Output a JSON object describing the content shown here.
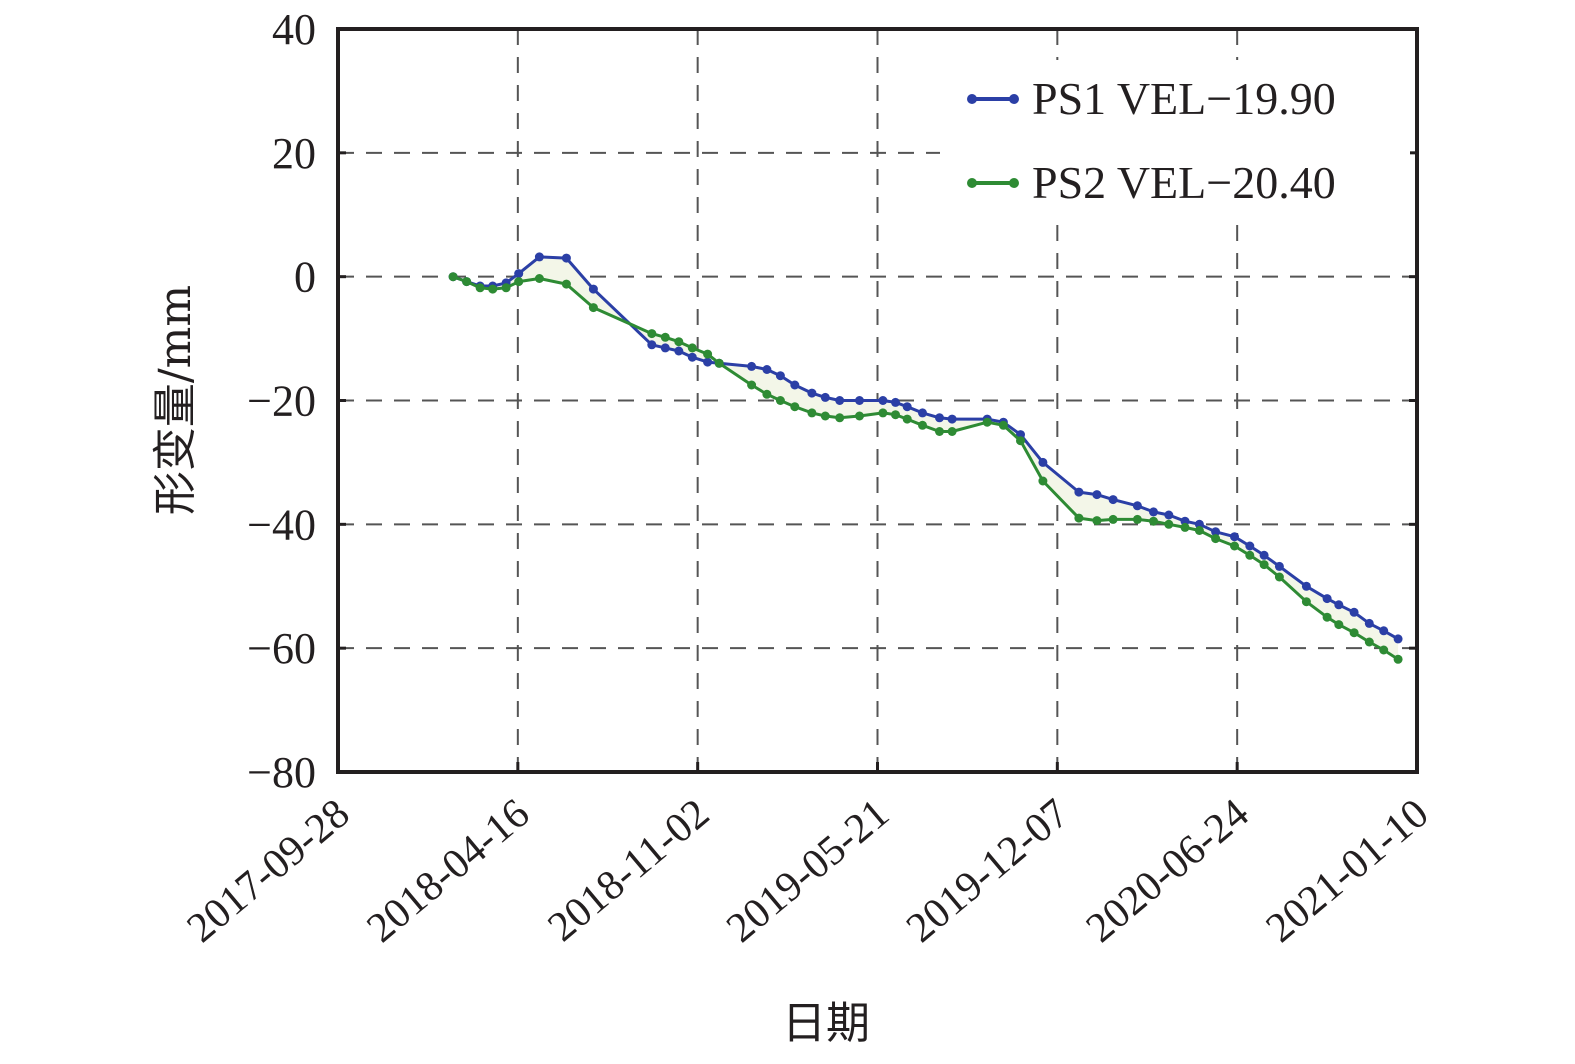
{
  "chart_data": {
    "type": "line",
    "title": "",
    "xlabel": "日期",
    "ylabel": "形变量/mm",
    "x_unit": "days since 2017-09-28",
    "xlim": [
      0,
      1200
    ],
    "ylim": [
      -80,
      40
    ],
    "grid": true,
    "legend_position": "top-right",
    "x_ticks": [
      {
        "value": 0,
        "label": "2017-09-28"
      },
      {
        "value": 200,
        "label": "2018-04-16"
      },
      {
        "value": 400,
        "label": "2018-11-02"
      },
      {
        "value": 600,
        "label": "2019-05-21"
      },
      {
        "value": 800,
        "label": "2019-12-07"
      },
      {
        "value": 1000,
        "label": "2020-06-24"
      },
      {
        "value": 1200,
        "label": "2021-01-10"
      }
    ],
    "y_ticks": [
      {
        "value": 40,
        "label": "40"
      },
      {
        "value": 20,
        "label": "20"
      },
      {
        "value": 0,
        "label": "0"
      },
      {
        "value": -20,
        "label": "−20"
      },
      {
        "value": -40,
        "label": "−40"
      },
      {
        "value": -60,
        "label": "−60"
      },
      {
        "value": -80,
        "label": "−80"
      }
    ],
    "x": [
      128,
      143,
      158,
      172,
      187,
      201,
      224,
      254,
      284,
      349,
      364,
      379,
      394,
      411,
      424,
      460,
      477,
      492,
      508,
      527,
      542,
      558,
      580,
      606,
      620,
      633,
      650,
      669,
      683,
      722,
      740,
      759,
      784,
      824,
      844,
      862,
      889,
      907,
      924,
      942,
      958,
      976,
      997,
      1014,
      1030,
      1047,
      1077,
      1100,
      1113,
      1130,
      1147,
      1163,
      1179
    ],
    "series": [
      {
        "name": "PS1 VEL−19.90",
        "color": "#2b3fa6",
        "values": [
          0,
          -0.8,
          -1.5,
          -1.5,
          -1,
          0.5,
          3.2,
          3,
          -2,
          -11,
          -11.5,
          -12,
          -13,
          -13.8,
          -14,
          -14.5,
          -15,
          -16,
          -17.5,
          -18.8,
          -19.5,
          -20,
          -20,
          -20,
          -20.3,
          -21,
          -22,
          -22.8,
          -23,
          -23,
          -23.5,
          -25.5,
          -30,
          -34.8,
          -35.2,
          -36,
          -37,
          -38,
          -38.5,
          -39.5,
          -40,
          -41.2,
          -42,
          -43.5,
          -45,
          -46.8,
          -50,
          -52,
          -53,
          -54.2,
          -56,
          -57.2,
          -58.5
        ]
      },
      {
        "name": "PS2 VEL−20.40",
        "color": "#2e8b34",
        "values": [
          0,
          -0.8,
          -1.8,
          -2,
          -1.8,
          -0.8,
          -0.3,
          -1.2,
          -5,
          -9.2,
          -9.8,
          -10.5,
          -11.5,
          -12.5,
          -14,
          -17.5,
          -19,
          -20,
          -21,
          -22,
          -22.5,
          -22.8,
          -22.5,
          -22,
          -22.3,
          -23,
          -24,
          -25,
          -25,
          -23.5,
          -24,
          -26.5,
          -33,
          -39,
          -39.4,
          -39.2,
          -39.2,
          -39.5,
          -40,
          -40.5,
          -41,
          -42.3,
          -43.5,
          -45,
          -46.5,
          -48.5,
          -52.5,
          -55,
          -56.2,
          -57.5,
          -59,
          -60.3,
          -61.8
        ]
      }
    ],
    "fill_between_color": "#f3f6e8"
  }
}
